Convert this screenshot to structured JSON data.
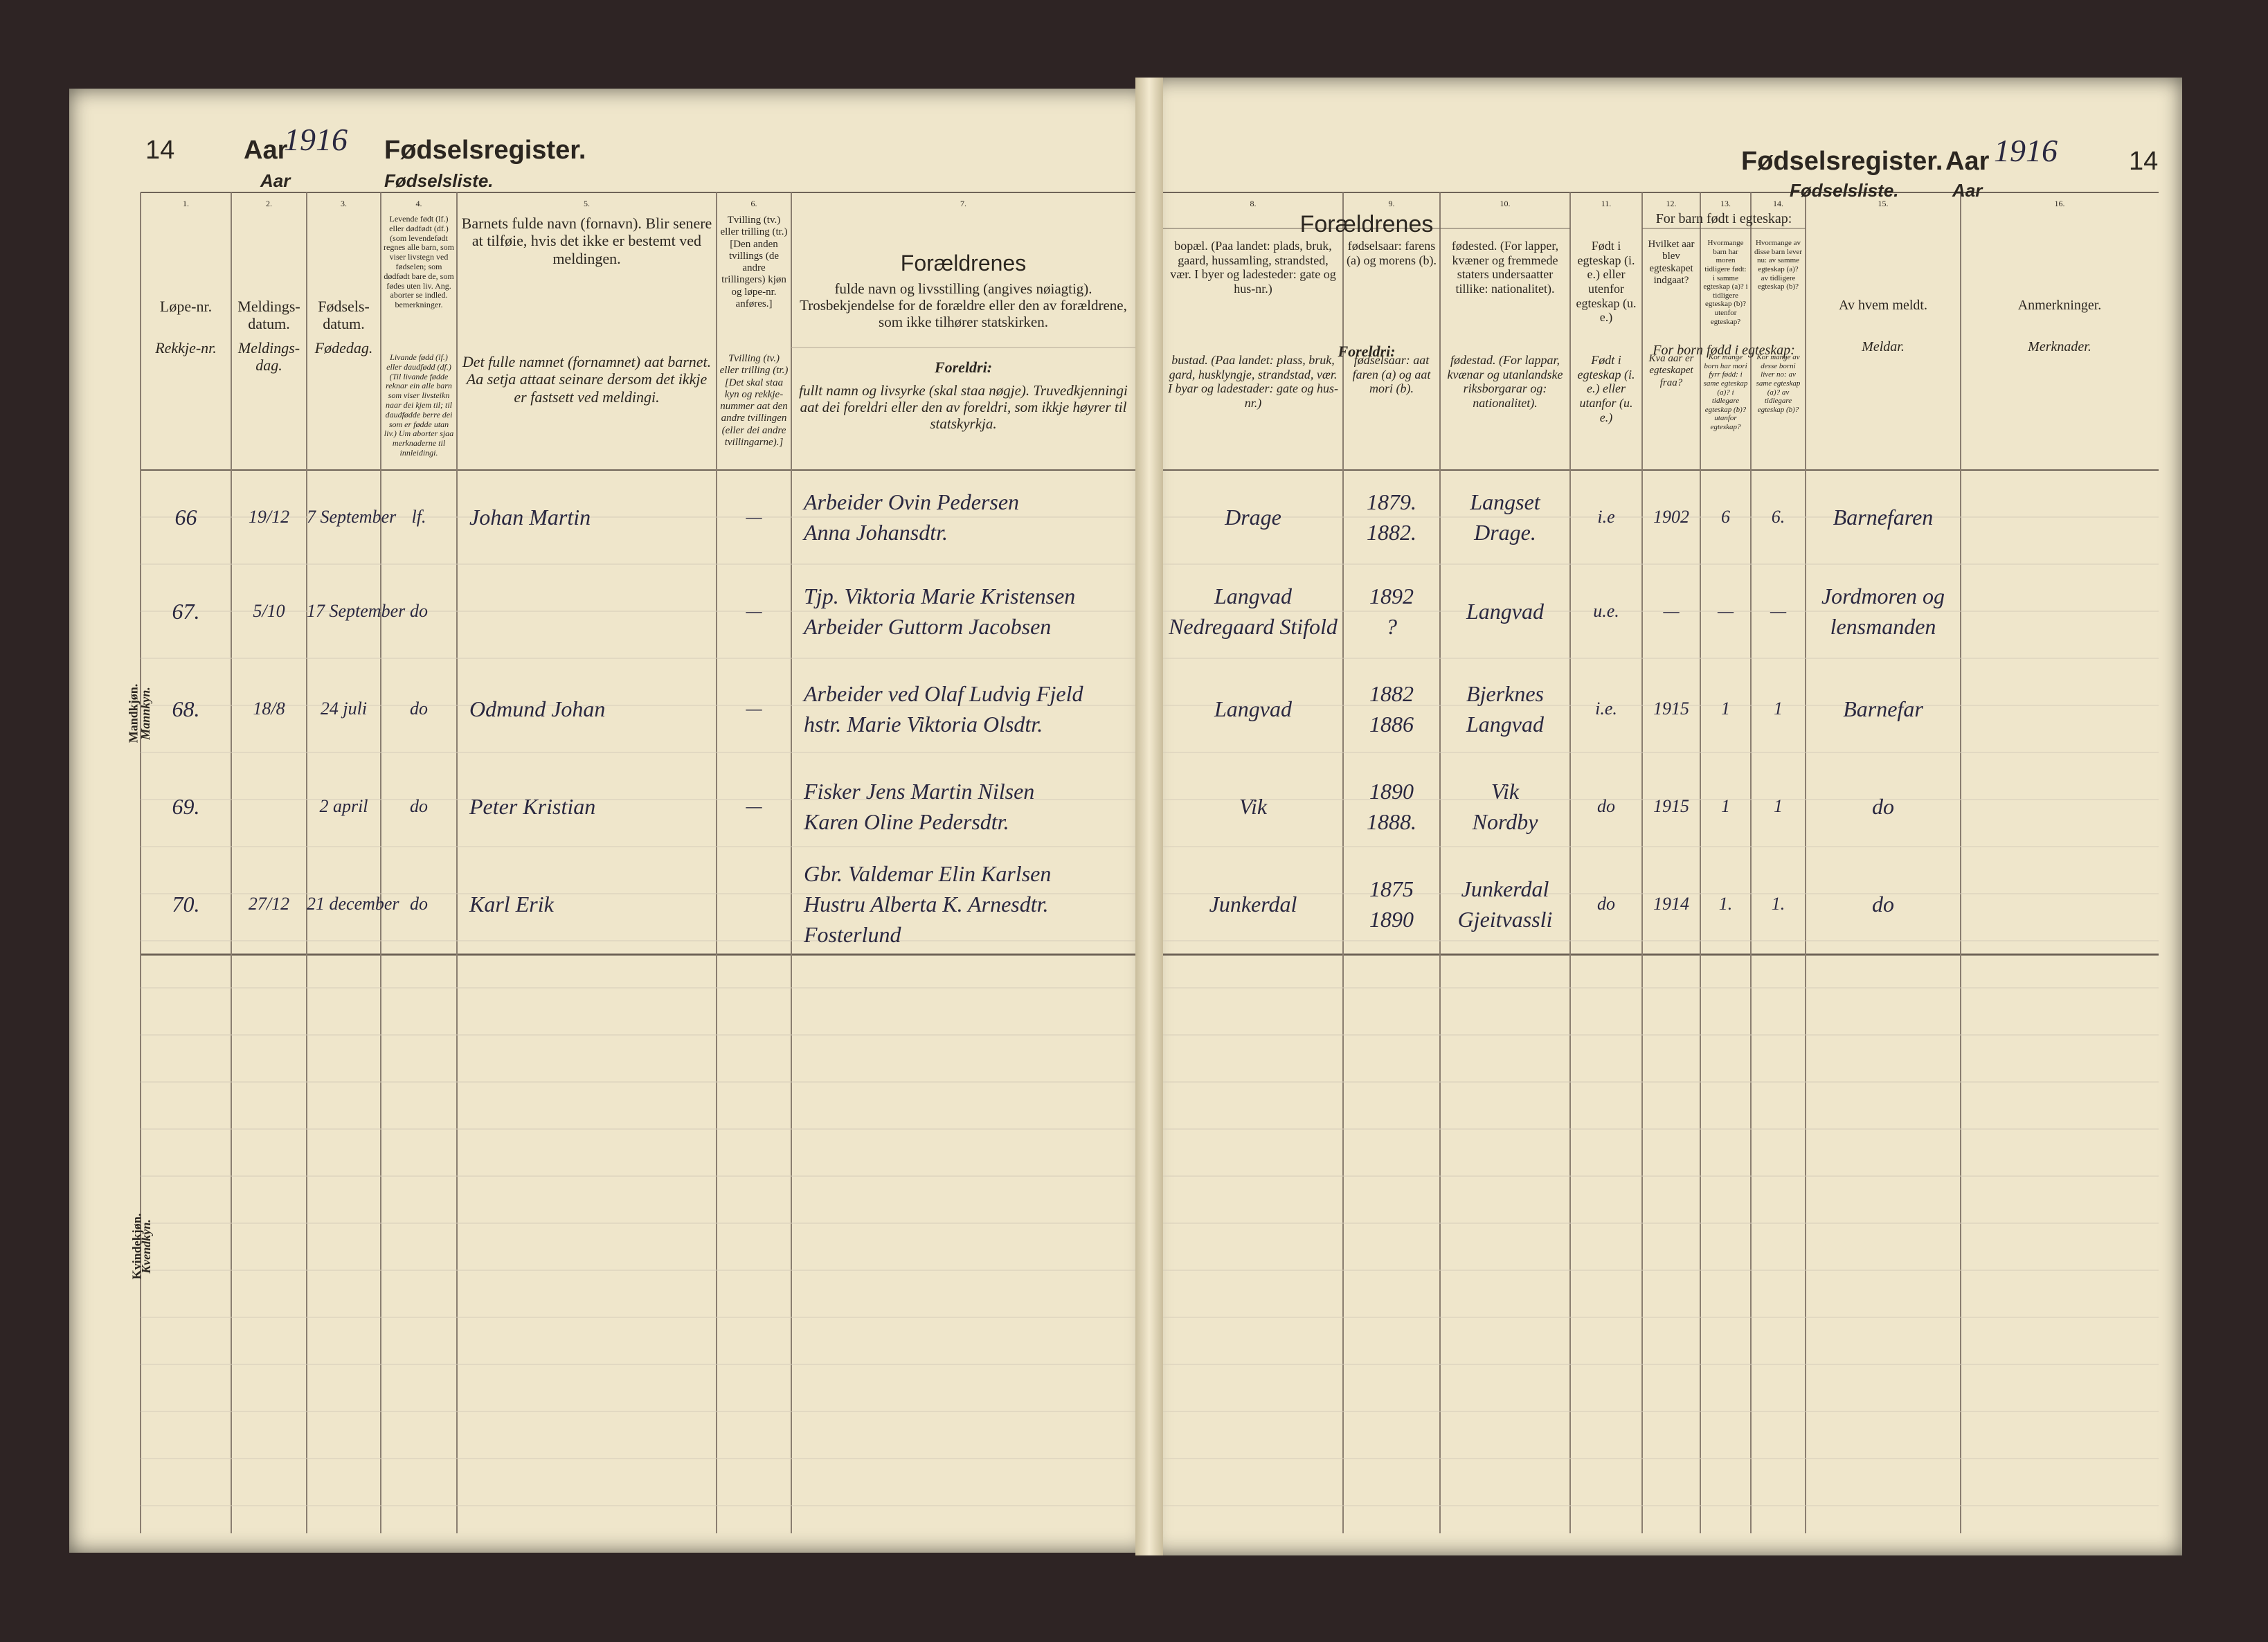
{
  "left_page": {
    "page_number": "14",
    "aar_label": "Aar",
    "year": "1916",
    "title": "Fødselsregister.",
    "aar_label_nn": "Aar",
    "subtitle": "Fødselsliste."
  },
  "right_page": {
    "page_number": "14",
    "aar_label": "Aar",
    "year": "1916",
    "title": "Fødselsregister.",
    "aar_label_nn": "Aar",
    "subtitle": "Fødselsliste."
  },
  "columns": [
    {
      "number": "1.",
      "bokmaal": "Løpe-nr.",
      "nynorsk": "Rekkje-nr."
    },
    {
      "number": "2.",
      "bokmaal": "Meldings-datum.",
      "nynorsk": "Meldings-dag."
    },
    {
      "number": "3.",
      "bokmaal": "Fødsels-datum.",
      "nynorsk": "Fødedag."
    },
    {
      "number": "4.",
      "bokmaal": "Levende født (lf.) eller dødfødt (df.) (som levendefødt regnes alle barn, som viser livstegn ved fødselen; som dødfødt bare de, som fødes uten liv. Ang. aborter se indled. bemerkninger.",
      "nynorsk": "Livande fødd (lf.) eller daudfødd (df.) (Til livande fødde reknar ein alle barn som viser livsteikn naar dei kjem til; til daudfødde berre dei som er fødde utan liv.) Um aborter sjaa merknaderne til innleidingi."
    },
    {
      "number": "5.",
      "bokmaal": "Barnets fulde navn (fornavn). Blir senere at tilføie, hvis det ikke er bestemt ved meldingen.",
      "nynorsk": "Det fulle namnet (fornamnet) aat barnet. Aa setja attaat seinare dersom det ikkje er fastsett ved meldingi."
    },
    {
      "number": "6.",
      "bokmaal": "Tvilling (tv.) eller trilling (tr.) [Den anden tvillings (de andre trillingers) kjøn og løpe-nr. anføres.]",
      "nynorsk": "Tvilling (tv.) eller trilling (tr.) [Det skal staa kyn og rekkje-nummer aat den andre tvillingen (eller dei andre tvillingarne).]"
    },
    {
      "number": "7.",
      "heading": "Forældrenes",
      "bokmaal": "fulde navn og livsstilling (angives nøiagtig). Trosbekjendelse for de forældre eller den av forældrene, som ikke tilhører statskirken.",
      "heading_nn": "Foreldri:",
      "nynorsk": "fullt namn og livsyrke (skal staa nøgje). Truvedkjenningi aat dei foreldri eller den av foreldri, som ikkje høyrer til statskyrkja."
    },
    {
      "number": "8.",
      "bokmaal": "bopæl. (Paa landet: plads, bruk, gaard, hussamling, strandsted, vær. I byer og ladesteder: gate og hus-nr.)",
      "nynorsk": "bustad. (Paa landet: plass, bruk, gard, husklyngje, strandstad, vær. I byar og ladestader: gate og hus-nr.)"
    },
    {
      "number": "9.",
      "bokmaal": "fødselsaar: farens (a) og morens (b).",
      "nynorsk": "fødselsaar: aat faren (a) og aat mori (b)."
    },
    {
      "number": "10.",
      "bokmaal": "fødested. (For lapper, kvæner og fremmede staters undersaatter tillike: nationalitet).",
      "nynorsk": "fødestad. (For lappar, kvænar og utanlandske riksborgarar og: nationalitet)."
    },
    {
      "number": "11.",
      "bokmaal": "Født i egteskap (i. e.) eller utenfor egteskap (u. e.)",
      "nynorsk": "Født i egteskap (i. e.) eller utanfor (u. e.)"
    },
    {
      "number": "12.",
      "bokmaal": "Hvilket aar blev egteskapet indgaat?",
      "nynorsk": "Kva aar er egteskapet fraa?"
    },
    {
      "number": "13.",
      "bokmaal": "Hvormange barn har moren tidligere født: i samme egteskap (a)? i tidligere egteskap (b)? utenfor egteskap?",
      "nynorsk": "Kor mange born har mori fyrr fødd: i same egteskap (a)? i tidlegare egteskap (b)? utanfor egteskap?"
    },
    {
      "number": "14.",
      "bokmaal": "Hvormange av disse barn lever nu: av samme egteskap (a)? av tidligere egteskap (b)?",
      "nynorsk": "Kor mange av desse borni liver no: av same egteskap (a)? av tidlegare egteskap (b)?"
    },
    {
      "number": "15.",
      "bokmaal": "Av hvem meldt.",
      "nynorsk": "Meldar."
    },
    {
      "number": "16.",
      "bokmaal": "Anmerkninger.",
      "nynorsk": "Merknader."
    }
  ],
  "group_headers": {
    "parents": "Forældrenes",
    "parents_nn": "Foreldri:",
    "married": "For barn født i egteskap:",
    "married_nn": "For born fødd i egteskap:"
  },
  "side_labels": [
    {
      "bokmaal": "Mandkjøn.",
      "nynorsk": "Mannkyn."
    },
    {
      "bokmaal": "Kvindekjøn.",
      "nynorsk": "Kvendkyn."
    }
  ],
  "rows": [
    [
      "66",
      "19/12",
      "7 September",
      "lf.",
      "Johan Martin",
      "—",
      [
        "Arbeider Ovin Pedersen",
        "Anna Johansdtr."
      ],
      "Drage",
      [
        "1879.",
        "1882."
      ],
      [
        "Langset",
        "Drage."
      ],
      "i.e",
      "1902",
      "6",
      "6.",
      "Barnefaren",
      null
    ],
    [
      "67.",
      "5/10",
      "17 September",
      "do",
      null,
      "—",
      [
        "Tjp. Viktoria Marie Kristensen",
        "Arbeider Guttorm Jacobsen"
      ],
      [
        "Langvad",
        "Nedregaard Stifold"
      ],
      [
        "1892",
        "?"
      ],
      "Langvad",
      "u.e.",
      "—",
      "—",
      "—",
      [
        "Jordmoren og",
        "lensmanden"
      ],
      null
    ],
    [
      "68.",
      "18/8",
      "24 juli",
      "do",
      "Odmund Johan",
      "—",
      [
        "Arbeider ved Olaf Ludvig Fjeld",
        "hstr. Marie Viktoria Olsdtr."
      ],
      "Langvad",
      [
        "1882",
        "1886"
      ],
      [
        "Bjerknes",
        "Langvad"
      ],
      "i.e.",
      "1915",
      "1",
      "1",
      "Barnefar",
      null
    ],
    [
      "69.",
      null,
      "2 april",
      "do",
      "Peter Kristian",
      "—",
      [
        "Fisker Jens Martin Nilsen",
        "Karen Oline Pedersdtr."
      ],
      "Vik",
      [
        "1890",
        "1888."
      ],
      [
        "Vik",
        "Nordby"
      ],
      "do",
      "1915",
      "1",
      "1",
      "do",
      null
    ],
    [
      "70.",
      "27/12",
      "21 december",
      "do",
      "Karl Erik",
      null,
      [
        "Gbr. Valdemar Elin Karlsen",
        "Hustru Alberta K. Arnesdtr.",
        "Fosterlund"
      ],
      "Junkerdal",
      [
        "1875",
        "1890"
      ],
      [
        "Junkerdal",
        "Gjeitvassli"
      ],
      "do",
      "1914",
      "1.",
      "1.",
      "do",
      null
    ]
  ]
}
